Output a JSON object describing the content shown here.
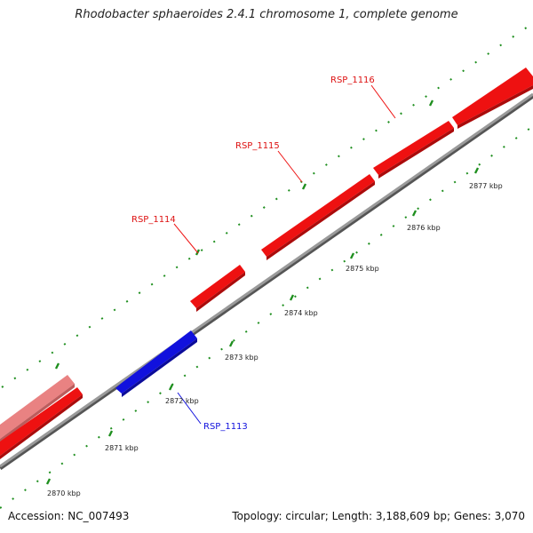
{
  "header": {
    "title": "Rhodobacter sphaeroides 2.4.1 chromosome 1, complete genome"
  },
  "footer": {
    "accession": "Accession: NC_007493",
    "summary": "Topology: circular; Length: 3,188,609 bp; Genes: 3,070"
  },
  "colors": {
    "forward_gene": "#ee1111",
    "faded_gene": "#ee8080",
    "reverse_gene": "#1111dd",
    "tick_green": "#1f8f1f",
    "backbone": "#999999"
  },
  "scale": {
    "labels": [
      "2870 kbp",
      "2871 kbp",
      "2872 kbp",
      "2873 kbp",
      "2874 kbp",
      "2875 kbp",
      "2876 kbp",
      "2877 kbp"
    ]
  },
  "genes": [
    {
      "label": "",
      "strand": "+",
      "color": "faded"
    },
    {
      "label": "",
      "strand": "+",
      "color": "forward"
    },
    {
      "label": "RSP_1113",
      "strand": "-",
      "color": "reverse"
    },
    {
      "label": "RSP_1114",
      "strand": "+",
      "color": "forward"
    },
    {
      "label": "RSP_1115",
      "strand": "+",
      "color": "forward"
    },
    {
      "label": "RSP_1116",
      "strand": "+",
      "color": "forward"
    },
    {
      "label": "",
      "strand": "+",
      "color": "forward"
    }
  ]
}
